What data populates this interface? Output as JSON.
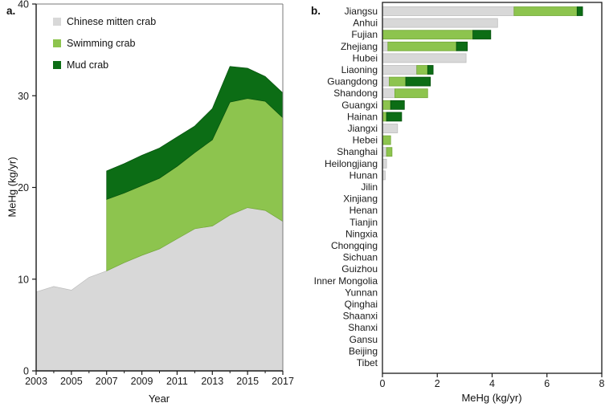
{
  "figure": {
    "panel_a_label": "a.",
    "panel_b_label": "b."
  },
  "colors": {
    "mitten": "#d8d8d8",
    "swimming": "#8dc44e",
    "mud": "#0c6d15",
    "mitten_edge": "#bcbcbc",
    "swimming_edge": "#74a83a",
    "mud_edge": "#06510e",
    "axis": "#1a1a1a",
    "box_light": "#7a7a7a"
  },
  "legend": [
    {
      "label": "Chinese mitten crab",
      "color_key": "mitten"
    },
    {
      "label": "Swimming crab",
      "color_key": "swimming"
    },
    {
      "label": "Mud crab",
      "color_key": "mud"
    }
  ],
  "chart_data": [
    {
      "id": "panel-a",
      "type": "area",
      "stacked": true,
      "xlabel": "Year",
      "ylabel": "MeHg (kg/yr)",
      "xlim": [
        2003,
        2017
      ],
      "ylim": [
        0,
        40
      ],
      "xticks": [
        2003,
        2005,
        2007,
        2009,
        2011,
        2013,
        2015,
        2017
      ],
      "xticks_minor": [
        2004,
        2006,
        2008,
        2010,
        2012,
        2014,
        2016
      ],
      "yticks": [
        0,
        10,
        20,
        30,
        40
      ],
      "grid": false,
      "legend_position": "top-left",
      "x": [
        2003,
        2004,
        2005,
        2006,
        2007,
        2008,
        2009,
        2010,
        2011,
        2012,
        2013,
        2014,
        2015,
        2016,
        2017
      ],
      "series": [
        {
          "name": "Chinese mitten crab",
          "color_key": "mitten",
          "values": [
            8.6,
            9.2,
            8.8,
            10.2,
            10.9,
            11.8,
            12.6,
            13.3,
            14.4,
            15.5,
            15.8,
            17.0,
            17.8,
            17.5,
            16.3
          ]
        },
        {
          "name": "Swimming crab",
          "color_key": "swimming",
          "values": [
            null,
            null,
            null,
            null,
            7.8,
            7.6,
            7.6,
            7.7,
            7.9,
            8.3,
            9.4,
            12.3,
            11.9,
            11.9,
            11.3
          ]
        },
        {
          "name": "Mud crab",
          "color_key": "mud",
          "values": [
            null,
            null,
            null,
            null,
            3.1,
            3.2,
            3.3,
            3.3,
            3.2,
            2.9,
            3.4,
            3.9,
            3.3,
            2.7,
            2.7
          ]
        }
      ]
    },
    {
      "id": "panel-b",
      "type": "bar",
      "orientation": "horizontal",
      "stacked": true,
      "xlabel": "MeHg (kg/yr)",
      "xlim": [
        0,
        8
      ],
      "xticks": [
        0,
        2,
        4,
        6,
        8
      ],
      "grid": false,
      "categories": [
        "Jiangsu",
        "Anhui",
        "Fujian",
        "Zhejiang",
        "Hubei",
        "Liaoning",
        "Guangdong",
        "Shandong",
        "Guangxi",
        "Hainan",
        "Jiangxi",
        "Hebei",
        "Shanghai",
        "Heilongjiang",
        "Hunan",
        "Jilin",
        "Xinjiang",
        "Henan",
        "Tianjin",
        "Ningxia",
        "Chongqing",
        "Sichuan",
        "Guizhou",
        "Inner Mongolia",
        "Yunnan",
        "Qinghai",
        "Shaanxi",
        "Shanxi",
        "Gansu",
        "Beijing",
        "Tibet"
      ],
      "series": [
        {
          "name": "Chinese mitten crab",
          "color_key": "mitten",
          "values": [
            4.8,
            4.2,
            0,
            0.2,
            3.05,
            1.25,
            0.25,
            0.45,
            0,
            0,
            0.55,
            0,
            0.15,
            0.15,
            0.1,
            0,
            0,
            0,
            0,
            0,
            0,
            0,
            0,
            0,
            0,
            0,
            0,
            0,
            0,
            0,
            0
          ]
        },
        {
          "name": "Swimming crab",
          "color_key": "swimming",
          "values": [
            2.3,
            0,
            3.3,
            2.5,
            0,
            0.4,
            0.6,
            1.2,
            0.3,
            0.15,
            0,
            0.3,
            0.2,
            0,
            0,
            0,
            0,
            0,
            0,
            0,
            0,
            0,
            0,
            0,
            0,
            0,
            0,
            0,
            0,
            0,
            0
          ]
        },
        {
          "name": "Mud crab",
          "color_key": "mud",
          "values": [
            0.2,
            0,
            0.65,
            0.4,
            0,
            0.2,
            0.9,
            0,
            0.5,
            0.55,
            0,
            0,
            0,
            0,
            0,
            0,
            0,
            0,
            0,
            0,
            0,
            0,
            0,
            0,
            0,
            0,
            0,
            0,
            0,
            0,
            0
          ]
        }
      ]
    }
  ]
}
